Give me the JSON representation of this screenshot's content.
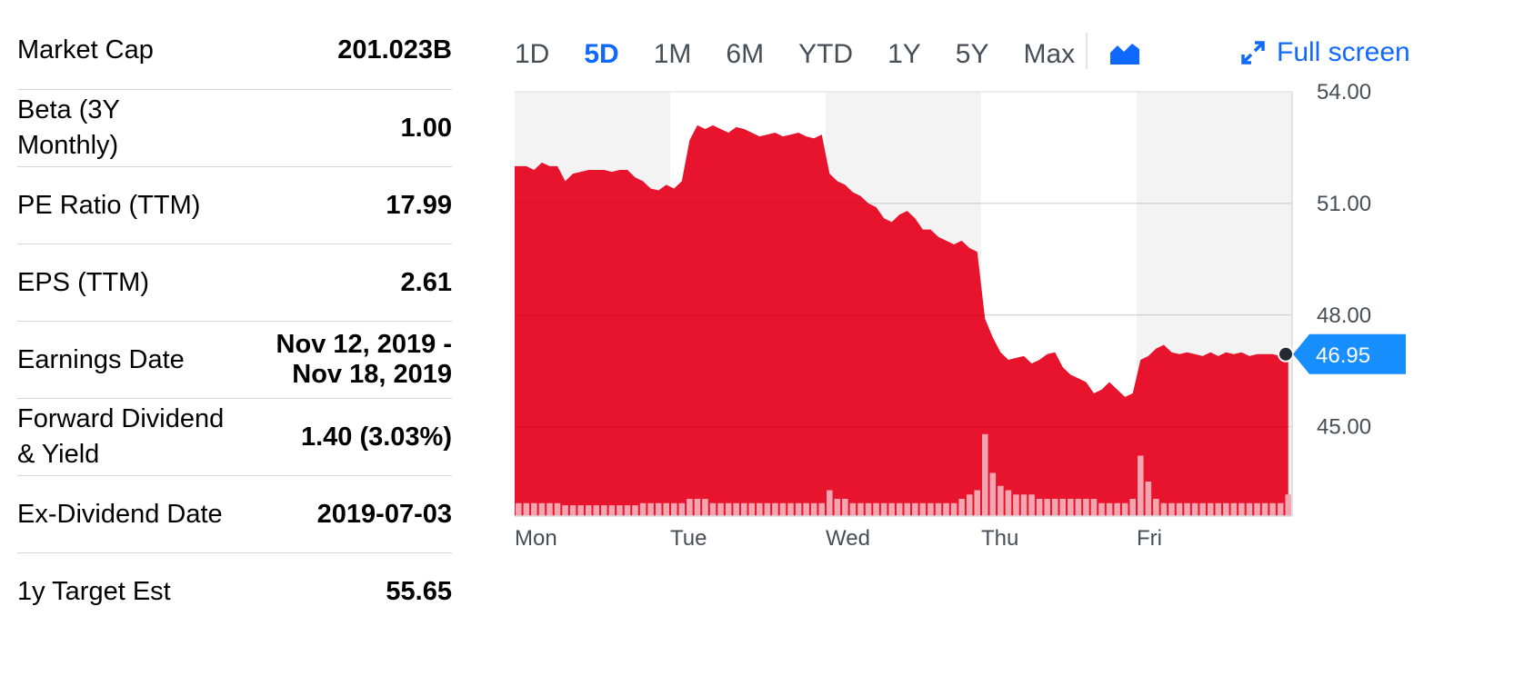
{
  "stats": [
    {
      "label": "Market Cap",
      "value": "201.023B"
    },
    {
      "label": "Beta (3Y Monthly)",
      "value": "1.00"
    },
    {
      "label": "PE Ratio (TTM)",
      "value": "17.99"
    },
    {
      "label": "EPS (TTM)",
      "value": "2.61"
    },
    {
      "label": "Earnings Date",
      "value_line1": "Nov 12, 2019 -",
      "value_line2": "Nov 18, 2019"
    },
    {
      "label": "Forward Dividend & Yield",
      "value": "1.40 (3.03%)"
    },
    {
      "label": "Ex-Dividend Date",
      "value": "2019-07-03"
    },
    {
      "label": "1y Target Est",
      "value": "55.65"
    }
  ],
  "ranges": [
    "1D",
    "5D",
    "1M",
    "6M",
    "YTD",
    "1Y",
    "5Y",
    "Max"
  ],
  "active_range": "5D",
  "chart_type_icon": "mountain-chart-icon",
  "fullscreen": {
    "label": "Full screen",
    "icon": "expand-arrows-icon"
  },
  "colors": {
    "accent": "#0f69ff",
    "area": "#e8132d",
    "volume": "#f4a6b0",
    "price_tag": "#188fff",
    "band": "#f3f3f3"
  },
  "current_price": "46.95",
  "chart_data": {
    "type": "area",
    "days": [
      "Mon",
      "Tue",
      "Wed",
      "Thu",
      "Fri"
    ],
    "y_ticks": [
      "54.00",
      "51.00",
      "48.00",
      "45.00"
    ],
    "ylim": [
      42.6,
      54.0
    ],
    "prices": [
      52.0,
      52.0,
      51.9,
      52.1,
      52.0,
      52.0,
      51.6,
      51.8,
      51.85,
      51.9,
      51.9,
      51.9,
      51.85,
      51.9,
      51.9,
      51.7,
      51.6,
      51.4,
      51.35,
      51.5,
      51.4,
      51.6,
      52.7,
      53.1,
      53.0,
      53.1,
      53.0,
      52.9,
      53.05,
      53.0,
      52.9,
      52.8,
      52.85,
      52.9,
      52.8,
      52.85,
      52.9,
      52.8,
      52.75,
      52.85,
      51.8,
      51.6,
      51.5,
      51.3,
      51.2,
      51.0,
      50.9,
      50.6,
      50.5,
      50.7,
      50.8,
      50.6,
      50.3,
      50.3,
      50.1,
      50.0,
      49.9,
      50.0,
      49.8,
      49.7,
      47.9,
      47.4,
      47.0,
      46.8,
      46.85,
      46.9,
      46.7,
      46.8,
      46.95,
      47.0,
      46.6,
      46.4,
      46.3,
      46.2,
      45.9,
      46.0,
      46.2,
      46.0,
      45.8,
      45.9,
      46.8,
      46.9,
      47.1,
      47.2,
      47.0,
      46.95,
      47.0,
      46.95,
      46.9,
      47.0,
      46.9,
      47.0,
      46.95,
      47.0,
      46.9,
      46.95,
      46.95,
      46.95,
      46.9,
      46.95
    ],
    "volume": [
      3,
      3,
      3,
      3,
      3,
      3,
      2.5,
      2.5,
      2.5,
      2.5,
      2.5,
      2.5,
      2.5,
      2.5,
      2.5,
      2.5,
      3,
      3,
      3,
      3,
      3,
      3,
      4,
      4,
      4,
      3,
      3,
      3,
      3,
      3,
      3,
      3,
      3,
      3,
      3,
      3,
      3,
      3,
      3,
      3,
      6,
      4,
      4,
      3,
      3,
      3,
      3,
      3,
      3,
      3,
      3,
      3,
      3,
      3,
      3,
      3,
      3,
      4,
      5,
      6,
      19,
      10,
      7,
      6,
      5,
      5,
      5,
      4,
      4,
      4,
      4,
      4,
      4,
      4,
      4,
      3,
      3,
      3,
      3,
      4,
      14,
      8,
      4,
      3,
      3,
      3,
      3,
      3,
      3,
      3,
      3,
      3,
      3,
      3,
      3,
      3,
      3,
      3,
      3,
      5
    ],
    "volume_max": 20
  }
}
